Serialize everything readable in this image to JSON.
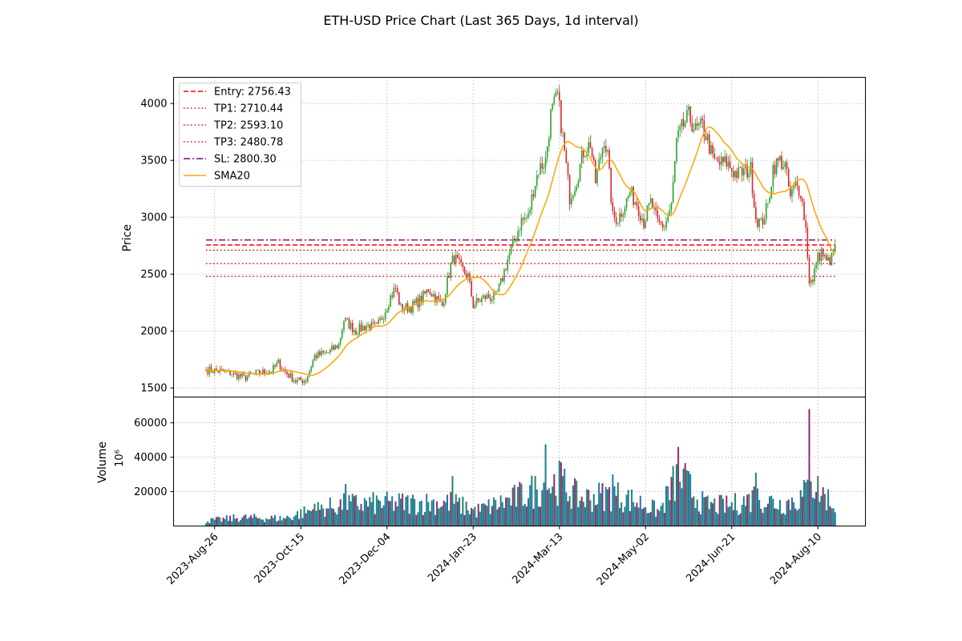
{
  "chart_data": {
    "type": "candlestick",
    "title": "ETH-USD Price Chart (Last 365 Days, 1d interval)",
    "date_range": [
      "2023-08-21",
      "2024-08-20"
    ],
    "xtick_labels": [
      "2023-Aug-26",
      "2023-Oct-15",
      "2023-Dec-04",
      "2024-Jan-23",
      "2024-Mar-13",
      "2024-May-02",
      "2024-Jun-21",
      "2024-Aug-10"
    ],
    "price_panel": {
      "ylabel": "Price",
      "ylim": [
        1420,
        4230
      ],
      "yticks": [
        1500,
        2000,
        2500,
        3000,
        3500,
        4000
      ],
      "grid": true,
      "legend_position": "upper-left",
      "levels": [
        {
          "name": "Entry: 2756.43",
          "value": 2756.43,
          "color": "#ff0000",
          "style": "dashed"
        },
        {
          "name": "TP1: 2710.44",
          "value": 2710.44,
          "color": "#ff0000",
          "style": "dotted"
        },
        {
          "name": "TP2: 2593.10",
          "value": 2593.1,
          "color": "#ff0000",
          "style": "dotted"
        },
        {
          "name": "TP3: 2480.78",
          "value": 2480.78,
          "color": "#ff0000",
          "style": "dotted"
        },
        {
          "name": "SL: 2800.30",
          "value": 2800.3,
          "color": "#800080",
          "style": "dashdot"
        }
      ],
      "sma_legend": "SMA20",
      "sma_color": "#ffa500",
      "up_color": "#2ca02c",
      "down_color": "#d62728",
      "close_anchors": [
        [
          "2023-08-21",
          1660
        ],
        [
          "2023-08-28",
          1650
        ],
        [
          "2023-09-04",
          1630
        ],
        [
          "2023-09-12",
          1590
        ],
        [
          "2023-09-20",
          1630
        ],
        [
          "2023-09-28",
          1650
        ],
        [
          "2023-10-02",
          1720
        ],
        [
          "2023-10-06",
          1640
        ],
        [
          "2023-10-12",
          1560
        ],
        [
          "2023-10-18",
          1570
        ],
        [
          "2023-10-23",
          1780
        ],
        [
          "2023-10-31",
          1810
        ],
        [
          "2023-11-06",
          1880
        ],
        [
          "2023-11-09",
          2100
        ],
        [
          "2023-11-16",
          2000
        ],
        [
          "2023-11-22",
          2050
        ],
        [
          "2023-11-28",
          2030
        ],
        [
          "2023-12-02",
          2150
        ],
        [
          "2023-12-06",
          2300
        ],
        [
          "2023-12-09",
          2380
        ],
        [
          "2023-12-12",
          2200
        ],
        [
          "2023-12-18",
          2210
        ],
        [
          "2023-12-24",
          2280
        ],
        [
          "2023-12-28",
          2370
        ],
        [
          "2024-01-01",
          2300
        ],
        [
          "2024-01-05",
          2220
        ],
        [
          "2024-01-10",
          2580
        ],
        [
          "2024-01-12",
          2650
        ],
        [
          "2024-01-16",
          2550
        ],
        [
          "2024-01-20",
          2480
        ],
        [
          "2024-01-23",
          2230
        ],
        [
          "2024-01-30",
          2300
        ],
        [
          "2024-02-05",
          2290
        ],
        [
          "2024-02-08",
          2420
        ],
        [
          "2024-02-12",
          2630
        ],
        [
          "2024-02-16",
          2800
        ],
        [
          "2024-02-20",
          2970
        ],
        [
          "2024-02-24",
          3000
        ],
        [
          "2024-02-27",
          3250
        ],
        [
          "2024-03-01",
          3420
        ],
        [
          "2024-03-05",
          3500
        ],
        [
          "2024-03-08",
          3900
        ],
        [
          "2024-03-12",
          4070
        ],
        [
          "2024-03-15",
          3700
        ],
        [
          "2024-03-19",
          3180
        ],
        [
          "2024-03-23",
          3330
        ],
        [
          "2024-03-27",
          3580
        ],
        [
          "2024-03-31",
          3650
        ],
        [
          "2024-04-03",
          3310
        ],
        [
          "2024-04-08",
          3700
        ],
        [
          "2024-04-10",
          3540
        ],
        [
          "2024-04-13",
          3000
        ],
        [
          "2024-04-16",
          2990
        ],
        [
          "2024-04-19",
          3080
        ],
        [
          "2024-04-23",
          3220
        ],
        [
          "2024-04-27",
          3120
        ],
        [
          "2024-05-01",
          2960
        ],
        [
          "2024-05-05",
          3130
        ],
        [
          "2024-05-09",
          2950
        ],
        [
          "2024-05-13",
          2920
        ],
        [
          "2024-05-17",
          3100
        ],
        [
          "2024-05-20",
          3660
        ],
        [
          "2024-05-23",
          3780
        ],
        [
          "2024-05-27",
          3890
        ],
        [
          "2024-05-31",
          3760
        ],
        [
          "2024-06-04",
          3800
        ],
        [
          "2024-06-07",
          3680
        ],
        [
          "2024-06-10",
          3510
        ],
        [
          "2024-06-14",
          3470
        ],
        [
          "2024-06-18",
          3480
        ],
        [
          "2024-06-22",
          3400
        ],
        [
          "2024-06-25",
          3380
        ],
        [
          "2024-06-28",
          3400
        ],
        [
          "2024-07-02",
          3420
        ],
        [
          "2024-07-05",
          3000
        ],
        [
          "2024-07-08",
          2940
        ],
        [
          "2024-07-12",
          3100
        ],
        [
          "2024-07-15",
          3440
        ],
        [
          "2024-07-19",
          3500
        ],
        [
          "2024-07-22",
          3450
        ],
        [
          "2024-07-25",
          3170
        ],
        [
          "2024-07-28",
          3280
        ],
        [
          "2024-07-31",
          3230
        ],
        [
          "2024-08-03",
          2900
        ],
        [
          "2024-08-05",
          2450
        ],
        [
          "2024-08-07",
          2420
        ],
        [
          "2024-08-09",
          2610
        ],
        [
          "2024-08-12",
          2700
        ],
        [
          "2024-08-15",
          2600
        ],
        [
          "2024-08-18",
          2640
        ],
        [
          "2024-08-20",
          2756
        ]
      ]
    },
    "volume_panel": {
      "ylabel": "Volume",
      "scale_label": "10⁶",
      "ylim": [
        0,
        75000
      ],
      "yticks": [
        20000,
        40000,
        60000
      ],
      "grid": true,
      "palette": [
        "#1f77b4",
        "#17807e",
        "#8c2d6b",
        "#2c7f6e"
      ],
      "volume_anchors": [
        [
          "2023-08-21",
          3000
        ],
        [
          "2023-09-10",
          5000
        ],
        [
          "2023-10-05",
          4500
        ],
        [
          "2023-10-20",
          9000
        ],
        [
          "2023-11-10",
          13000
        ],
        [
          "2023-12-08",
          13500
        ],
        [
          "2024-01-10",
          14000
        ],
        [
          "2024-01-25",
          9000
        ],
        [
          "2024-02-15",
          16000
        ],
        [
          "2024-03-05",
          24000
        ],
        [
          "2024-03-13",
          26000
        ],
        [
          "2024-03-25",
          16000
        ],
        [
          "2024-04-13",
          19000
        ],
        [
          "2024-05-01",
          13000
        ],
        [
          "2024-05-10",
          8500
        ],
        [
          "2024-05-21",
          30000
        ],
        [
          "2024-06-05",
          12500
        ],
        [
          "2024-06-20",
          12000
        ],
        [
          "2024-07-05",
          17000
        ],
        [
          "2024-07-20",
          13000
        ],
        [
          "2024-08-01",
          17000
        ],
        [
          "2024-08-06",
          26000
        ],
        [
          "2024-08-20",
          12000
        ]
      ],
      "spikes": [
        [
          "2023-10-23",
          13000
        ],
        [
          "2023-11-10",
          24500
        ],
        [
          "2024-01-11",
          29000
        ],
        [
          "2024-03-05",
          47500
        ],
        [
          "2024-03-14",
          37000
        ],
        [
          "2024-04-13",
          30000
        ],
        [
          "2024-05-21",
          46000
        ],
        [
          "2024-05-20",
          36000
        ],
        [
          "2024-07-05",
          31000
        ],
        [
          "2024-07-04",
          23000
        ],
        [
          "2024-08-05",
          68000
        ],
        [
          "2024-08-06",
          26000
        ]
      ]
    }
  }
}
